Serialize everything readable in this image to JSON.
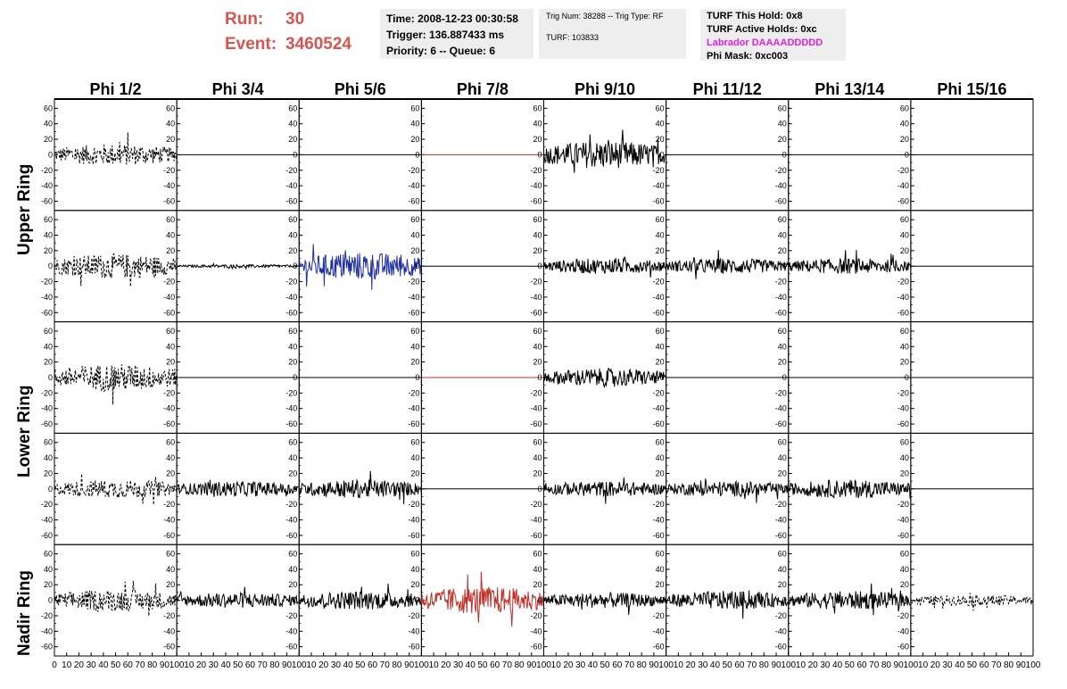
{
  "header": {
    "run_label": "Run:",
    "run_value": "30",
    "event_label": "Event:",
    "event_value": "3460524",
    "time": "Time: 2008-12-23 00:30:58",
    "trigger": "Trigger: 136.887433 ms",
    "priority": "Priority: 6 -- Queue: 6",
    "trig_num": "Trig Num: 38288 -- Trig Type: RF",
    "turf": "TURF: 103833",
    "turf_hold": "TURF This Hold: 0x8",
    "turf_active": "TURF Active Holds: 0xc",
    "labrador": "Labrador DAAAADDDDD",
    "phi_mask": "Phi Mask: 0xc003"
  },
  "colors": {
    "run_text": "#d9534f",
    "labrador": "#e020e0",
    "box_bg": "#eeeeee",
    "trace_black": "#000000",
    "trace_blue": "#1f2fa0",
    "trace_red": "#c0302a"
  },
  "chart_data": {
    "type": "line",
    "columns": [
      "Phi 1/2",
      "Phi 3/4",
      "Phi 5/6",
      "Phi 7/8",
      "Phi 9/10",
      "Phi 11/12",
      "Phi 13/14",
      "Phi 15/16"
    ],
    "ring_labels": [
      "Upper Ring",
      "Lower Ring",
      "Nadir Ring"
    ],
    "rows": 5,
    "ylim": [
      -65,
      65
    ],
    "xlim": [
      0,
      100
    ],
    "yticks": [
      -60,
      -40,
      -20,
      0,
      20,
      40,
      60
    ],
    "xticks": [
      0,
      10,
      20,
      30,
      40,
      50,
      60,
      70,
      80,
      90,
      100
    ],
    "panels": [
      [
        "dashed:14",
        "flat",
        "flat",
        "flat-red",
        "solid:18",
        "flat",
        "flat",
        "flat"
      ],
      [
        "dashed:16",
        "solid:2",
        "blue:18",
        "flat",
        "solid:10",
        "solid:10",
        "solid:10",
        "flat"
      ],
      [
        "dashed:18",
        "flat",
        "flat",
        "flat-red",
        "solid:12",
        "flat",
        "flat",
        "flat"
      ],
      [
        "dashed:12",
        "solid:10",
        "solid:12",
        "flat",
        "solid:10",
        "solid:10",
        "solid:12",
        "flat"
      ],
      [
        "dashed:14",
        "solid:10",
        "solid:12",
        "red:18",
        "solid:10",
        "solid:12",
        "solid:12",
        "dashed:7"
      ]
    ]
  }
}
